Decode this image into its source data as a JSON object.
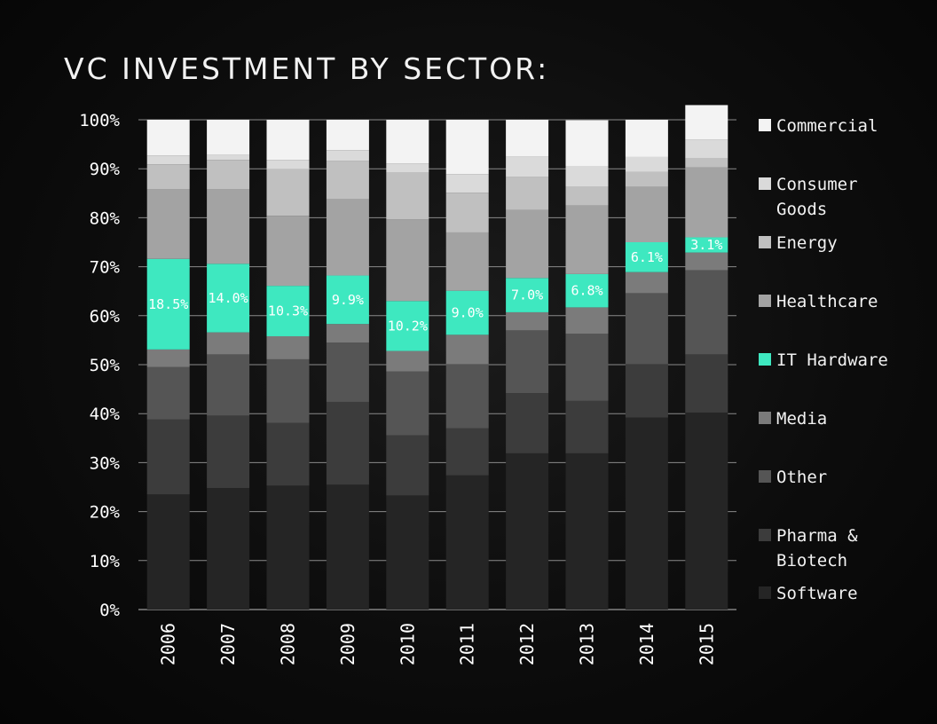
{
  "chart_data": {
    "type": "bar",
    "stacked": true,
    "title": "VC INVESTMENT BY SECTOR:",
    "xlabel": "",
    "ylabel": "",
    "ylim": [
      0,
      100
    ],
    "yticks": [
      "0%",
      "10%",
      "20%",
      "30%",
      "40%",
      "50%",
      "60%",
      "70%",
      "80%",
      "90%",
      "100%"
    ],
    "categories": [
      "2006",
      "2007",
      "2008",
      "2009",
      "2010",
      "2011",
      "2012",
      "2013",
      "2014",
      "2015"
    ],
    "series": [
      {
        "name": "Software",
        "color": "#252525",
        "values": [
          23.5,
          24.8,
          25.3,
          25.5,
          23.3,
          27.4,
          31.9,
          31.9,
          39.2,
          40.2
        ]
      },
      {
        "name": "Pharma & Biotech",
        "color": "#3c3c3c",
        "values": [
          15.3,
          14.8,
          12.8,
          16.9,
          12.3,
          9.6,
          12.3,
          10.7,
          10.9,
          11.9
        ]
      },
      {
        "name": "Other",
        "color": "#555555",
        "values": [
          10.7,
          12.5,
          13.0,
          12.1,
          13.0,
          13.1,
          12.8,
          13.7,
          14.5,
          17.2
        ]
      },
      {
        "name": "Media",
        "color": "#7b7b7b",
        "values": [
          3.6,
          4.5,
          4.7,
          3.8,
          4.2,
          6.0,
          3.7,
          5.4,
          4.3,
          3.6
        ]
      },
      {
        "name": "IT Hardware",
        "color": "#3ee8c0",
        "values": [
          18.5,
          14.0,
          10.3,
          9.9,
          10.2,
          9.0,
          7.0,
          6.8,
          6.1,
          3.1
        ]
      },
      {
        "name": "Healthcare",
        "color": "#a3a3a3",
        "values": [
          14.2,
          15.2,
          14.3,
          15.6,
          16.7,
          11.9,
          13.9,
          14.0,
          11.3,
          14.3
        ]
      },
      {
        "name": "Energy",
        "color": "#c0c0c0",
        "values": [
          5.1,
          6.0,
          9.5,
          7.8,
          9.5,
          8.1,
          6.8,
          3.8,
          3.1,
          1.8
        ]
      },
      {
        "name": "Consumer Goods",
        "color": "#dadada",
        "values": [
          1.8,
          1.0,
          1.9,
          2.2,
          1.9,
          3.8,
          4.1,
          4.2,
          3.0,
          3.9
        ]
      },
      {
        "name": "Commercial",
        "color": "#f3f3f3",
        "values": [
          7.3,
          7.2,
          8.2,
          6.2,
          8.9,
          11.1,
          7.5,
          9.4,
          7.6,
          7.0
        ]
      }
    ],
    "data_labels": [
      "18.5%",
      "14.0%",
      "10.3%",
      "9.9%",
      "10.2%",
      "9.0%",
      "7.0%",
      "6.8%",
      "6.1%",
      "3.1%"
    ],
    "legend": [
      "Commercial",
      "Consumer Goods",
      "Energy",
      "Healthcare",
      "IT Hardware",
      "Media",
      "Other",
      "Pharma & Biotech",
      "Software"
    ],
    "legend_position": "right"
  }
}
